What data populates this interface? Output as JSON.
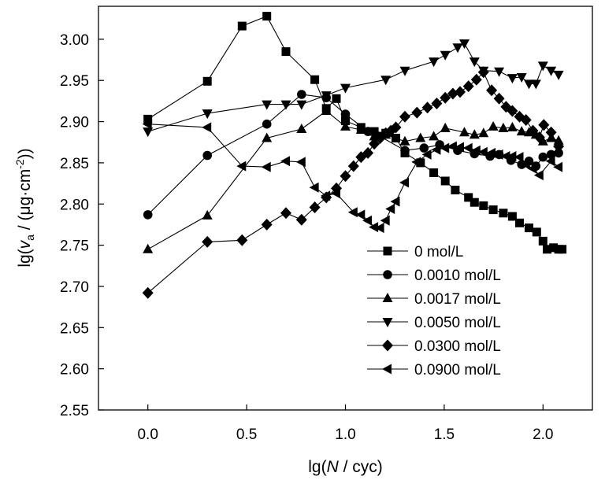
{
  "chart_data": {
    "type": "line",
    "title": "",
    "xlabel_parts": [
      "lg(",
      "N",
      " / cyc)"
    ],
    "ylabel_parts": [
      "lg(",
      "v",
      "a",
      " / (μg·cm",
      "-2",
      "))"
    ],
    "xlim": [
      -0.25,
      2.25
    ],
    "ylim": [
      2.55,
      3.04
    ],
    "x_ticks": [
      0.0,
      0.5,
      1.0,
      1.5,
      2.0
    ],
    "x_tick_labels": [
      "0.0",
      "0.5",
      "1.0",
      "1.5",
      "2.0"
    ],
    "y_ticks": [
      2.55,
      2.6,
      2.65,
      2.7,
      2.75,
      2.8,
      2.85,
      2.9,
      2.95,
      3.0
    ],
    "y_tick_labels": [
      "2.55",
      "2.60",
      "2.65",
      "2.70",
      "2.75",
      "2.80",
      "2.85",
      "2.90",
      "2.95",
      "3.00"
    ],
    "grid": false,
    "legend_position": "bottom-right",
    "series": [
      {
        "name": "0 mol/L",
        "marker": "square",
        "points": [
          [
            0,
            2.903
          ],
          [
            0.301,
            2.949
          ],
          [
            0.477,
            3.016
          ],
          [
            0.602,
            3.028
          ],
          [
            0.699,
            2.985
          ],
          [
            0.845,
            2.951
          ],
          [
            0.903,
            2.916
          ],
          [
            0.954,
            2.928
          ],
          [
            1.0,
            2.901
          ],
          [
            1.079,
            2.893
          ],
          [
            1.146,
            2.888
          ],
          [
            1.204,
            2.886
          ],
          [
            1.255,
            2.88
          ],
          [
            1.301,
            2.862
          ],
          [
            1.38,
            2.85
          ],
          [
            1.447,
            2.838
          ],
          [
            1.505,
            2.828
          ],
          [
            1.556,
            2.817
          ],
          [
            1.623,
            2.808
          ],
          [
            1.653,
            2.802
          ],
          [
            1.699,
            2.798
          ],
          [
            1.748,
            2.793
          ],
          [
            1.799,
            2.789
          ],
          [
            1.845,
            2.785
          ],
          [
            1.881,
            2.777
          ],
          [
            1.929,
            2.771
          ],
          [
            1.968,
            2.766
          ],
          [
            2.0,
            2.755
          ],
          [
            2.021,
            2.745
          ],
          [
            2.053,
            2.747
          ],
          [
            2.079,
            2.745
          ],
          [
            2.097,
            2.745
          ]
        ]
      },
      {
        "name": "0.0010 mol/L",
        "marker": "circle",
        "points": [
          [
            0,
            2.787
          ],
          [
            0.301,
            2.859
          ],
          [
            0.602,
            2.897
          ],
          [
            0.778,
            2.933
          ],
          [
            0.903,
            2.929
          ],
          [
            1.0,
            2.909
          ],
          [
            1.114,
            2.888
          ],
          [
            1.176,
            2.882
          ],
          [
            1.301,
            2.865
          ],
          [
            1.398,
            2.868
          ],
          [
            1.477,
            2.872
          ],
          [
            1.568,
            2.865
          ],
          [
            1.653,
            2.861
          ],
          [
            1.732,
            2.858
          ],
          [
            1.778,
            2.86
          ],
          [
            1.838,
            2.853
          ],
          [
            1.892,
            2.848
          ],
          [
            1.929,
            2.852
          ],
          [
            1.964,
            2.846
          ],
          [
            2.0,
            2.857
          ],
          [
            2.041,
            2.86
          ],
          [
            2.079,
            2.862
          ]
        ]
      },
      {
        "name": "0.0017 mol/L",
        "marker": "triangle-up",
        "points": [
          [
            0,
            2.745
          ],
          [
            0.301,
            2.786
          ],
          [
            0.602,
            2.88
          ],
          [
            0.778,
            2.891
          ],
          [
            0.903,
            2.913
          ],
          [
            1.0,
            2.894
          ],
          [
            1.079,
            2.89
          ],
          [
            1.146,
            2.882
          ],
          [
            1.204,
            2.884
          ],
          [
            1.301,
            2.876
          ],
          [
            1.38,
            2.88
          ],
          [
            1.447,
            2.882
          ],
          [
            1.505,
            2.892
          ],
          [
            1.602,
            2.887
          ],
          [
            1.653,
            2.884
          ],
          [
            1.699,
            2.886
          ],
          [
            1.748,
            2.894
          ],
          [
            1.799,
            2.892
          ],
          [
            1.845,
            2.893
          ],
          [
            1.892,
            2.888
          ],
          [
            1.929,
            2.887
          ],
          [
            1.964,
            2.884
          ],
          [
            2.0,
            2.876
          ],
          [
            2.041,
            2.88
          ],
          [
            2.079,
            2.877
          ]
        ]
      },
      {
        "name": "0.0050 mol/L",
        "marker": "triangle-down",
        "points": [
          [
            0,
            2.888
          ],
          [
            0.301,
            2.91
          ],
          [
            0.602,
            2.921
          ],
          [
            0.699,
            2.921
          ],
          [
            0.778,
            2.921
          ],
          [
            0.903,
            2.932
          ],
          [
            1.0,
            2.941
          ],
          [
            1.204,
            2.951
          ],
          [
            1.301,
            2.962
          ],
          [
            1.447,
            2.973
          ],
          [
            1.505,
            2.981
          ],
          [
            1.568,
            2.99
          ],
          [
            1.602,
            2.995
          ],
          [
            1.653,
            2.973
          ],
          [
            1.699,
            2.962
          ],
          [
            1.778,
            2.961
          ],
          [
            1.845,
            2.953
          ],
          [
            1.892,
            2.954
          ],
          [
            1.929,
            2.946
          ],
          [
            1.964,
            2.946
          ],
          [
            2.0,
            2.968
          ],
          [
            2.041,
            2.962
          ],
          [
            2.079,
            2.957
          ]
        ]
      },
      {
        "name": "0.0300 mol/L",
        "marker": "diamond",
        "points": [
          [
            0,
            2.692
          ],
          [
            0.301,
            2.754
          ],
          [
            0.477,
            2.756
          ],
          [
            0.602,
            2.775
          ],
          [
            0.699,
            2.789
          ],
          [
            0.778,
            2.781
          ],
          [
            0.845,
            2.796
          ],
          [
            0.903,
            2.808
          ],
          [
            0.954,
            2.819
          ],
          [
            1.0,
            2.834
          ],
          [
            1.041,
            2.846
          ],
          [
            1.079,
            2.857
          ],
          [
            1.114,
            2.862
          ],
          [
            1.146,
            2.873
          ],
          [
            1.176,
            2.88
          ],
          [
            1.204,
            2.886
          ],
          [
            1.23,
            2.889
          ],
          [
            1.255,
            2.893
          ],
          [
            1.301,
            2.906
          ],
          [
            1.362,
            2.911
          ],
          [
            1.415,
            2.917
          ],
          [
            1.462,
            2.922
          ],
          [
            1.505,
            2.929
          ],
          [
            1.544,
            2.934
          ],
          [
            1.58,
            2.936
          ],
          [
            1.623,
            2.943
          ],
          [
            1.663,
            2.951
          ],
          [
            1.699,
            2.96
          ],
          [
            1.74,
            2.938
          ],
          [
            1.778,
            2.928
          ],
          [
            1.813,
            2.918
          ],
          [
            1.845,
            2.913
          ],
          [
            1.881,
            2.906
          ],
          [
            1.914,
            2.902
          ],
          [
            1.949,
            2.889
          ],
          [
            1.982,
            2.881
          ],
          [
            2.004,
            2.896
          ],
          [
            2.041,
            2.887
          ],
          [
            2.079,
            2.87
          ]
        ]
      },
      {
        "name": "0.0900 mol/L",
        "marker": "triangle-left",
        "points": [
          [
            0,
            2.897
          ],
          [
            0.301,
            2.893
          ],
          [
            0.477,
            2.846
          ],
          [
            0.602,
            2.845
          ],
          [
            0.699,
            2.852
          ],
          [
            0.778,
            2.851
          ],
          [
            0.845,
            2.82
          ],
          [
            0.903,
            2.81
          ],
          [
            0.954,
            2.813
          ],
          [
            1.041,
            2.79
          ],
          [
            1.079,
            2.787
          ],
          [
            1.114,
            2.78
          ],
          [
            1.146,
            2.772
          ],
          [
            1.176,
            2.771
          ],
          [
            1.204,
            2.78
          ],
          [
            1.23,
            2.794
          ],
          [
            1.255,
            2.803
          ],
          [
            1.301,
            2.826
          ],
          [
            1.362,
            2.851
          ],
          [
            1.415,
            2.86
          ],
          [
            1.462,
            2.866
          ],
          [
            1.505,
            2.868
          ],
          [
            1.544,
            2.87
          ],
          [
            1.58,
            2.869
          ],
          [
            1.623,
            2.868
          ],
          [
            1.663,
            2.865
          ],
          [
            1.699,
            2.863
          ],
          [
            1.74,
            2.862
          ],
          [
            1.778,
            2.86
          ],
          [
            1.813,
            2.858
          ],
          [
            1.845,
            2.858
          ],
          [
            1.881,
            2.857
          ],
          [
            1.914,
            2.848
          ],
          [
            1.949,
            2.843
          ],
          [
            1.982,
            2.835
          ],
          [
            2.041,
            2.852
          ],
          [
            2.079,
            2.845
          ]
        ]
      }
    ]
  }
}
